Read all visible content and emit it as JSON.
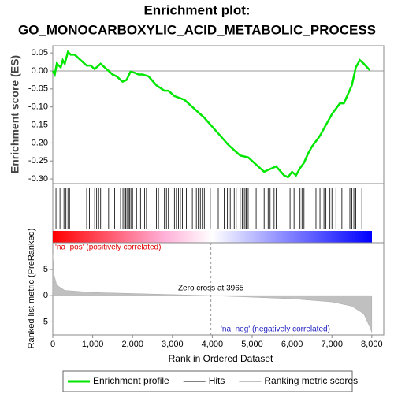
{
  "chart_data": [
    {
      "type": "line",
      "title": "Enrichment plot:",
      "subtitle": "GO_MONOCARBOXYLIC_ACID_METABOLIC_PROCESS",
      "ylabel": "Enrichment score (ES)",
      "x": [
        0,
        50,
        100,
        200,
        250,
        300,
        380,
        450,
        550,
        700,
        850,
        950,
        1050,
        1200,
        1300,
        1400,
        1500,
        1600,
        1750,
        1850,
        1950,
        2050,
        2150,
        2250,
        2400,
        2600,
        2800,
        2900,
        3050,
        3300,
        3500,
        3800,
        4000,
        4200,
        4400,
        4600,
        4700,
        4900,
        5100,
        5300,
        5400,
        5500,
        5600,
        5800,
        5900,
        6000,
        6100,
        6200,
        6300,
        6400,
        6500,
        6600,
        6700,
        6800,
        6900,
        7000,
        7100,
        7200,
        7300,
        7400,
        7500,
        7600,
        7700,
        7800,
        7950
      ],
      "series": [
        {
          "name": "Enrichment profile",
          "color": "#00e600",
          "values": [
            0,
            -0.01,
            0.02,
            0.01,
            0.03,
            0.02,
            0.053,
            0.045,
            0.045,
            0.03,
            0.015,
            0.015,
            0.005,
            0.02,
            0.01,
            0,
            -0.01,
            -0.015,
            -0.03,
            -0.025,
            -0.002,
            -0.005,
            -0.01,
            -0.01,
            -0.015,
            -0.04,
            -0.055,
            -0.055,
            -0.07,
            -0.08,
            -0.1,
            -0.13,
            -0.155,
            -0.18,
            -0.205,
            -0.225,
            -0.235,
            -0.24,
            -0.26,
            -0.28,
            -0.275,
            -0.27,
            -0.265,
            -0.29,
            -0.295,
            -0.28,
            -0.29,
            -0.27,
            -0.255,
            -0.23,
            -0.21,
            -0.195,
            -0.18,
            -0.16,
            -0.14,
            -0.12,
            -0.105,
            -0.09,
            -0.09,
            -0.065,
            -0.04,
            0.01,
            0.03,
            0.02,
            0.002
          ]
        }
      ],
      "xlim": [
        0,
        8300
      ],
      "ylim": [
        -0.313,
        0.07
      ],
      "yticks": [
        {
          "value": 0.05,
          "label": "0.05"
        },
        {
          "value": 0,
          "label": "0.00"
        },
        {
          "value": -0.05,
          "label": "-0.05"
        },
        {
          "value": -0.1,
          "label": "-0.10"
        },
        {
          "value": -0.15,
          "label": "-0.15"
        },
        {
          "value": -0.2,
          "label": "-0.20"
        },
        {
          "value": -0.25,
          "label": "-0.25"
        },
        {
          "value": -0.3,
          "label": "-0.30"
        }
      ]
    },
    {
      "type": "hits",
      "xlim": [
        0,
        8300
      ],
      "series": [
        {
          "name": "Hits",
          "color": "#808080",
          "values": [
            80,
            180,
            280,
            330,
            380,
            420,
            850,
            920,
            1050,
            1100,
            1150,
            1200,
            1400,
            1550,
            1700,
            1760,
            1800,
            1830,
            1860,
            1900,
            1930,
            1960,
            2000,
            2100,
            2200,
            2300,
            2350,
            2600,
            2650,
            2800,
            2850,
            2900,
            3050,
            3100,
            3150,
            3200,
            3250,
            3350,
            3500,
            3600,
            3650,
            3700,
            3750,
            3800,
            3950,
            4150,
            4300,
            4380,
            4450,
            4550,
            4600,
            4700,
            4750,
            4780,
            4820,
            4850,
            4900,
            5100,
            5300,
            5400,
            5450,
            5550,
            5600,
            5800,
            5950,
            6000,
            6050,
            6200,
            6250,
            6300,
            6450,
            6550,
            6600,
            6700,
            6800,
            6850,
            6950,
            7000,
            7100,
            7250,
            7300,
            7400,
            7450,
            7500,
            7550,
            7600,
            7750
          ]
        }
      ]
    },
    {
      "type": "area",
      "ylabel": "Ranked list metric (PreRanked)",
      "xlabel": "Rank in Ordered Dataset",
      "x": [
        0,
        30,
        100,
        300,
        1000,
        2000,
        3000,
        3965,
        5000,
        6000,
        7000,
        7500,
        7800,
        7950,
        8000
      ],
      "series": [
        {
          "name": "Ranking metric scores",
          "color": "#c0c0c0",
          "values": [
            8,
            4,
            2,
            1,
            0.6,
            0.4,
            0.2,
            0,
            -0.3,
            -0.6,
            -1.2,
            -2,
            -3.5,
            -6,
            -7
          ]
        }
      ],
      "xlim": [
        0,
        8300
      ],
      "ylim": [
        -7.5,
        10.1
      ],
      "yticks": [
        5,
        0,
        -5
      ],
      "xticks": [
        0,
        {
          "value": 1000,
          "label": "1,000"
        },
        {
          "value": 2000,
          "label": "2,000"
        },
        {
          "value": 3000,
          "label": "3,000"
        },
        {
          "value": 4000,
          "label": "4,000"
        },
        {
          "value": 5000,
          "label": "5,000"
        },
        {
          "value": 6000,
          "label": "6,000"
        },
        {
          "value": 7000,
          "label": "7,000"
        },
        {
          "value": 8000,
          "label": "8,000"
        }
      ],
      "pos_label": "'na_pos' (positively correlated)",
      "neg_label": "'na_neg' (negatively correlated)",
      "zero_cross": {
        "value": 3965,
        "label": "Zero cross at 3965"
      }
    }
  ]
}
